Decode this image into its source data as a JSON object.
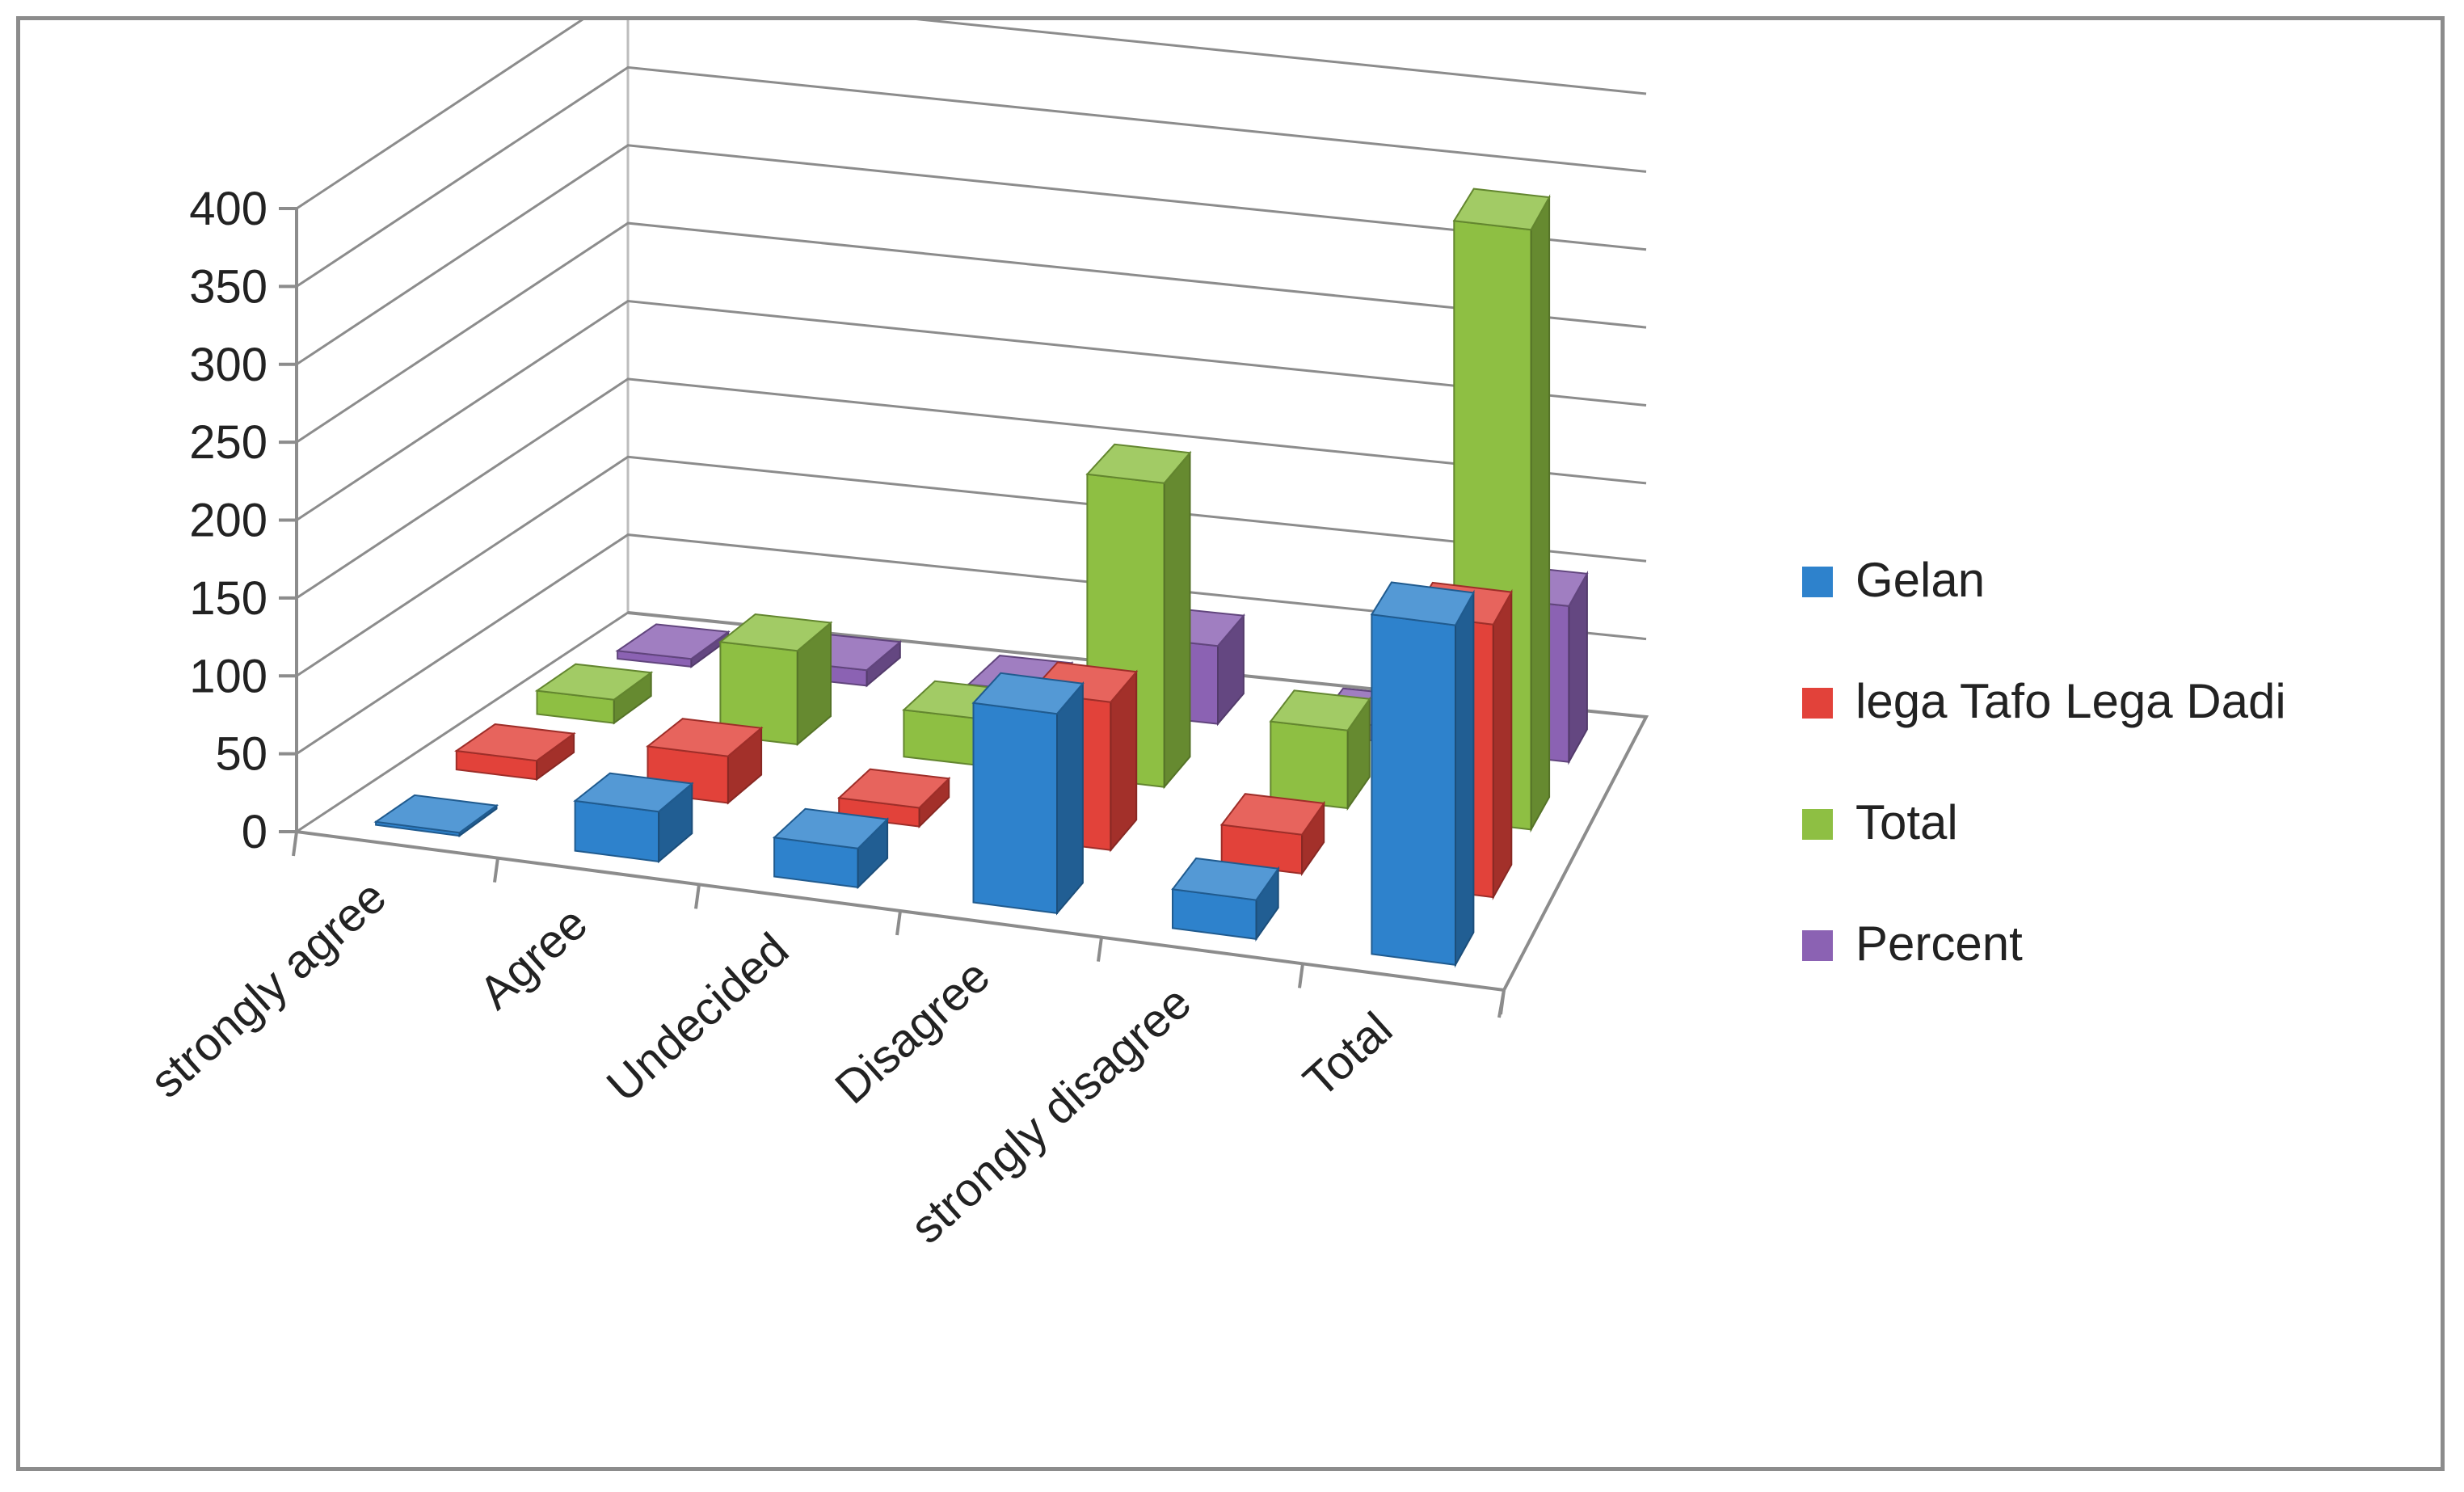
{
  "chart_data": {
    "type": "bar",
    "subtype": "3d-clustered-column",
    "categories": [
      "strongly agree",
      "Agree",
      "Undecided",
      "Disagree",
      "strongly disagree",
      "Total"
    ],
    "series": [
      {
        "name": "Gelan",
        "color": "#2e82cc",
        "values": [
          2,
          32,
          25,
          128,
          25,
          218
        ]
      },
      {
        "name": "lega Tafo Lega Dadi",
        "color": "#e2423a",
        "values": [
          12,
          30,
          12,
          95,
          25,
          175
        ]
      },
      {
        "name": "Total",
        "color": "#8ebf43",
        "values": [
          15,
          60,
          30,
          195,
          50,
          385
        ]
      },
      {
        "name": "Percent",
        "color": "#8b62b3",
        "values": [
          5,
          10,
          8,
          50,
          10,
          100
        ]
      }
    ],
    "yticks": [
      "0",
      "50",
      "100",
      "150",
      "200",
      "250",
      "300",
      "350",
      "400"
    ],
    "ylim": [
      0,
      400
    ],
    "title": "",
    "xlabel": "",
    "ylabel": "",
    "legend_position": "right",
    "grid": true
  }
}
